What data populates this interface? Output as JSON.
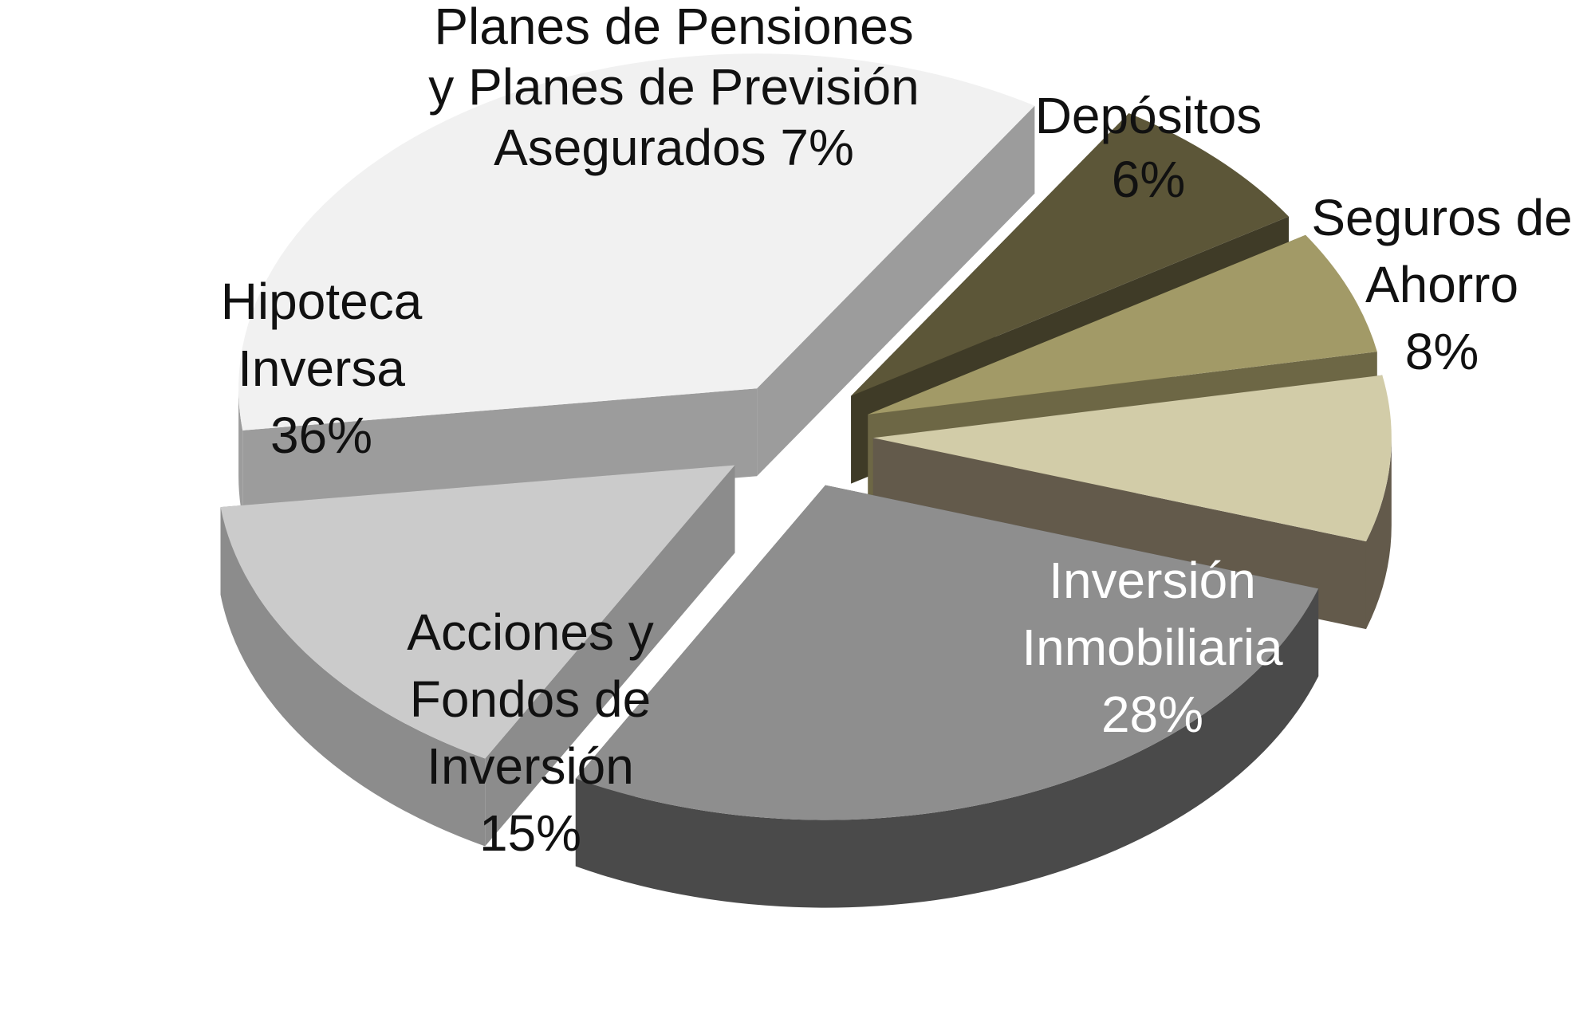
{
  "chart_data": {
    "type": "pie",
    "title": "",
    "style": "3d-exploded",
    "slices": [
      {
        "name": "Inversión Inmobiliaria",
        "label_lines": [
          "Inversión",
          "Inmobiliaria"
        ],
        "pct_label": "28%",
        "value": 28,
        "top_color": "#8e8e8e",
        "side_color": "#4a4a4a",
        "label_tone": "light"
      },
      {
        "name": "Acciones y Fondos de Inversión",
        "label_lines": [
          "Acciones y",
          "Fondos de",
          "Inversión"
        ],
        "pct_label": "15%",
        "value": 15,
        "top_color": "#cbcbcb",
        "side_color": "#8c8c8c",
        "label_tone": "dark"
      },
      {
        "name": "Hipoteca Inversa",
        "label_lines": [
          "Hipoteca",
          "Inversa"
        ],
        "pct_label": "36%",
        "value": 36,
        "top_color": "#f1f1f1",
        "side_color": "#9c9c9c",
        "label_tone": "dark"
      },
      {
        "name": "Planes de Pensiones y Planes de Previsión Asegurados",
        "label_lines": [
          "Planes de Pensiones",
          "y Planes de Previsión",
          "Asegurados 7%"
        ],
        "pct_label": "",
        "value": 7,
        "top_color": "#5c5638",
        "side_color": "#3f3b27",
        "label_tone": "dark"
      },
      {
        "name": "Depósitos",
        "label_lines": [
          "Depósitos"
        ],
        "pct_label": "6%",
        "value": 6,
        "top_color": "#a29a67",
        "side_color": "#6d6745",
        "label_tone": "dark"
      },
      {
        "name": "Seguros de Ahorro",
        "label_lines": [
          "Seguros de",
          "Ahorro"
        ],
        "pct_label": "8%",
        "value": 8,
        "top_color": "#d2cca8",
        "side_color": "#635a4b",
        "label_tone": "dark"
      }
    ]
  }
}
